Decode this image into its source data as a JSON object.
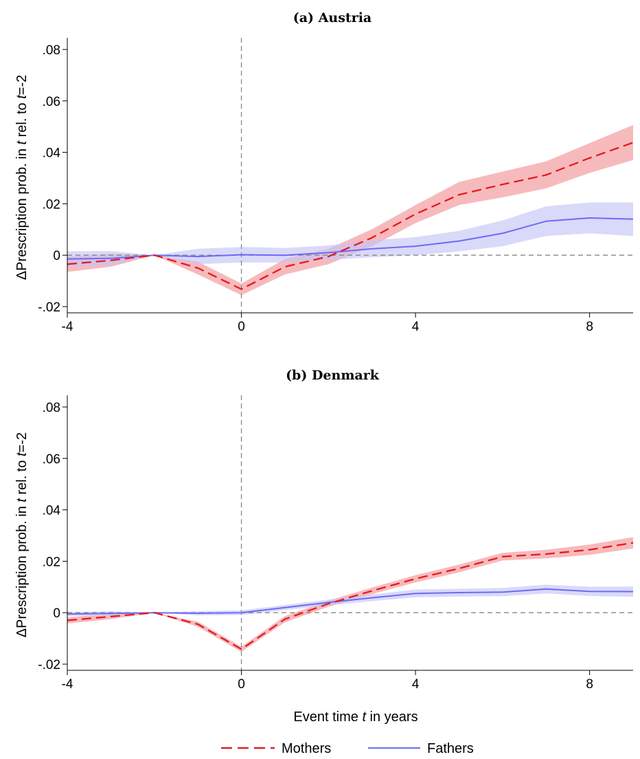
{
  "chart_data": [
    {
      "type": "line",
      "title": "(a) Austria",
      "ylabel_parts": [
        "ΔPrescription prob. in ",
        "t",
        " rel. to ",
        "t",
        "=-2"
      ],
      "xlim": [
        -4,
        9
      ],
      "ylim": [
        -0.02,
        0.08
      ],
      "xticks": [
        -4,
        0,
        4,
        8
      ],
      "xtick_labels": [
        "-4",
        "0",
        "4",
        "8"
      ],
      "yticks": [
        -0.02,
        0,
        0.02,
        0.04,
        0.06,
        0.08
      ],
      "ytick_labels": [
        "-.02",
        "0",
        ".02",
        ".04",
        ".06",
        ".08"
      ],
      "x": [
        -4,
        -3,
        -2,
        -1,
        0,
        1,
        2,
        3,
        4,
        5,
        6,
        7,
        8,
        9
      ],
      "series": [
        {
          "name": "Mothers",
          "values": [
            -0.0035,
            -0.002,
            0,
            -0.005,
            -0.0132,
            -0.0045,
            -0.0005,
            0.0068,
            0.016,
            0.0235,
            0.0275,
            0.0312,
            0.0378,
            0.0438
          ],
          "ci_low": [
            -0.0065,
            -0.0045,
            0,
            -0.0075,
            -0.0155,
            -0.0075,
            -0.0035,
            0.0035,
            0.0125,
            0.0195,
            0.0225,
            0.026,
            0.032,
            0.037
          ],
          "ci_high": [
            -0.0005,
            0.0005,
            0,
            -0.0025,
            -0.011,
            -0.0015,
            0.0025,
            0.0101,
            0.0195,
            0.0285,
            0.0325,
            0.0365,
            0.0436,
            0.0506
          ]
        },
        {
          "name": "Fathers",
          "values": [
            -0.0015,
            -0.0012,
            0,
            -0.0005,
            0.0002,
            0.0,
            0.001,
            0.0025,
            0.0035,
            0.0055,
            0.0085,
            0.0132,
            0.0145,
            0.014
          ],
          "ci_low": [
            -0.0045,
            -0.004,
            0,
            -0.0035,
            -0.0028,
            -0.0028,
            -0.0018,
            -0.0008,
            0.0,
            0.0015,
            0.0035,
            0.0075,
            0.0085,
            0.0075
          ],
          "ci_high": [
            0.0015,
            0.0016,
            0,
            0.0025,
            0.0032,
            0.0028,
            0.0038,
            0.0058,
            0.007,
            0.0095,
            0.0135,
            0.019,
            0.0205,
            0.0205
          ]
        }
      ]
    },
    {
      "type": "line",
      "title": "(b) Denmark",
      "ylabel_parts": [
        "ΔPrescription prob. in ",
        "t",
        " rel. to ",
        "t",
        "=-2"
      ],
      "xlabel_parts": [
        "Event time ",
        "t",
        " in years"
      ],
      "xlim": [
        -4,
        9
      ],
      "ylim": [
        -0.02,
        0.08
      ],
      "xticks": [
        -4,
        0,
        4,
        8
      ],
      "xtick_labels": [
        "-4",
        "0",
        "4",
        "8"
      ],
      "yticks": [
        -0.02,
        0,
        0.02,
        0.04,
        0.06,
        0.08
      ],
      "ytick_labels": [
        "-.02",
        "0",
        ".02",
        ".04",
        ".06",
        ".08"
      ],
      "x": [
        -4,
        -3,
        -2,
        -1,
        0,
        1,
        2,
        3,
        4,
        5,
        6,
        7,
        8,
        9
      ],
      "series": [
        {
          "name": "Mothers",
          "values": [
            -0.003,
            -0.0015,
            0,
            -0.0045,
            -0.0142,
            -0.0025,
            0.0035,
            0.0085,
            0.0132,
            0.0172,
            0.0218,
            0.0228,
            0.0245,
            0.0272
          ],
          "ci_low": [
            -0.0042,
            -0.0025,
            0,
            -0.0055,
            -0.0152,
            -0.0037,
            0.0023,
            0.0072,
            0.0118,
            0.0157,
            0.0203,
            0.0211,
            0.0225,
            0.025
          ],
          "ci_high": [
            -0.0018,
            -0.0005,
            0,
            -0.0035,
            -0.0132,
            -0.0013,
            0.0047,
            0.0098,
            0.0146,
            0.0187,
            0.0233,
            0.0245,
            0.0265,
            0.0294
          ]
        },
        {
          "name": "Fathers",
          "values": [
            -0.0005,
            -0.0003,
            0,
            -0.0002,
            0.0,
            0.002,
            0.004,
            0.0058,
            0.0075,
            0.0078,
            0.008,
            0.0092,
            0.0083,
            0.0082
          ],
          "ci_low": [
            -0.0013,
            -0.0011,
            0,
            -0.001,
            -0.0009,
            0.001,
            0.0029,
            0.0045,
            0.006,
            0.0063,
            0.0064,
            0.0075,
            0.0065,
            0.0062
          ],
          "ci_high": [
            0.0003,
            0.0005,
            0,
            0.0006,
            0.0009,
            0.003,
            0.0051,
            0.0071,
            0.009,
            0.0093,
            0.0096,
            0.0109,
            0.0101,
            0.0102
          ]
        }
      ]
    }
  ],
  "legend": {
    "position": "bottom-center",
    "items": [
      {
        "label": "Mothers",
        "color": "#e8191e",
        "dash": "dashed"
      },
      {
        "label": "Fathers",
        "color": "#6b6bf5",
        "dash": "solid"
      }
    ]
  },
  "colors": {
    "mothers_line": "#e8191e",
    "mothers_band": "#f4a3a6",
    "fathers_line": "#6b6bf5",
    "fathers_band": "#c4c4f7",
    "reference_line": "#888888"
  }
}
